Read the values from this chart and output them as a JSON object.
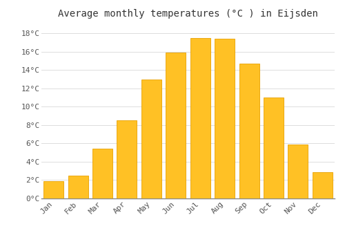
{
  "months": [
    "Jan",
    "Feb",
    "Mar",
    "Apr",
    "May",
    "Jun",
    "Jul",
    "Aug",
    "Sep",
    "Oct",
    "Nov",
    "Dec"
  ],
  "values": [
    1.9,
    2.5,
    5.4,
    8.5,
    13.0,
    15.9,
    17.5,
    17.4,
    14.7,
    11.0,
    5.9,
    2.9
  ],
  "bar_color": "#FFC125",
  "bar_edge_color": "#E8A000",
  "title": "Average monthly temperatures (°C ) in Eijsden",
  "ylim": [
    0,
    19
  ],
  "ytick_step": 2,
  "background_color": "#FFFFFF",
  "grid_color": "#DDDDDD",
  "title_fontsize": 10,
  "tick_fontsize": 8,
  "font_family": "monospace",
  "bar_width": 0.82
}
